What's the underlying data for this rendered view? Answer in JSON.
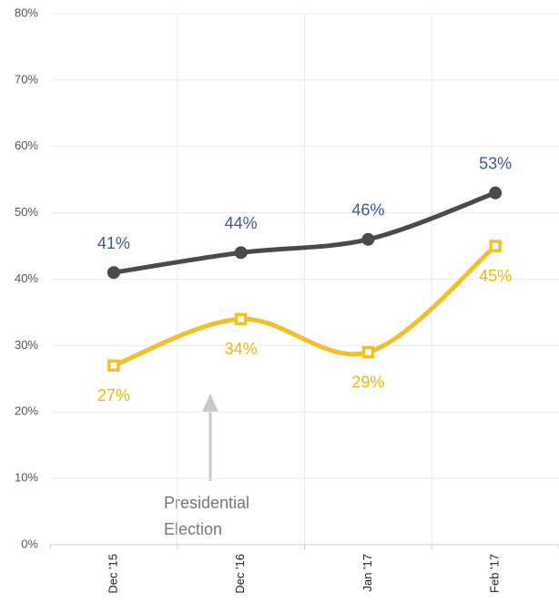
{
  "chart_data": {
    "type": "line",
    "categories": [
      "Dec '15",
      "Dec '16",
      "Jan '17",
      "Feb '17"
    ],
    "series": [
      {
        "color": "#4a4a4a",
        "label_color": "#3f5a9a",
        "marker": "circle",
        "values": [
          41,
          44,
          46,
          53
        ],
        "value_labels": [
          "41%",
          "44%",
          "46%",
          "53%"
        ]
      },
      {
        "color": "#f0c030",
        "label_color": "#f0b800",
        "marker": "square",
        "values": [
          27,
          34,
          29,
          45
        ],
        "value_labels": [
          "27%",
          "34%",
          "29%",
          "45%"
        ]
      }
    ],
    "ylim": [
      0,
      80
    ],
    "yticks": [
      {
        "value": 0,
        "label": "0%"
      },
      {
        "value": 10,
        "label": "10%"
      },
      {
        "value": 20,
        "label": "20%"
      },
      {
        "value": 30,
        "label": "30%"
      },
      {
        "value": 40,
        "label": "40%"
      },
      {
        "value": 50,
        "label": "50%"
      },
      {
        "value": 60,
        "label": "60%"
      },
      {
        "value": 70,
        "label": "70%"
      },
      {
        "value": 80,
        "label": "80%"
      }
    ],
    "grid": true,
    "annotation": [
      "Presidential",
      "Election"
    ]
  }
}
